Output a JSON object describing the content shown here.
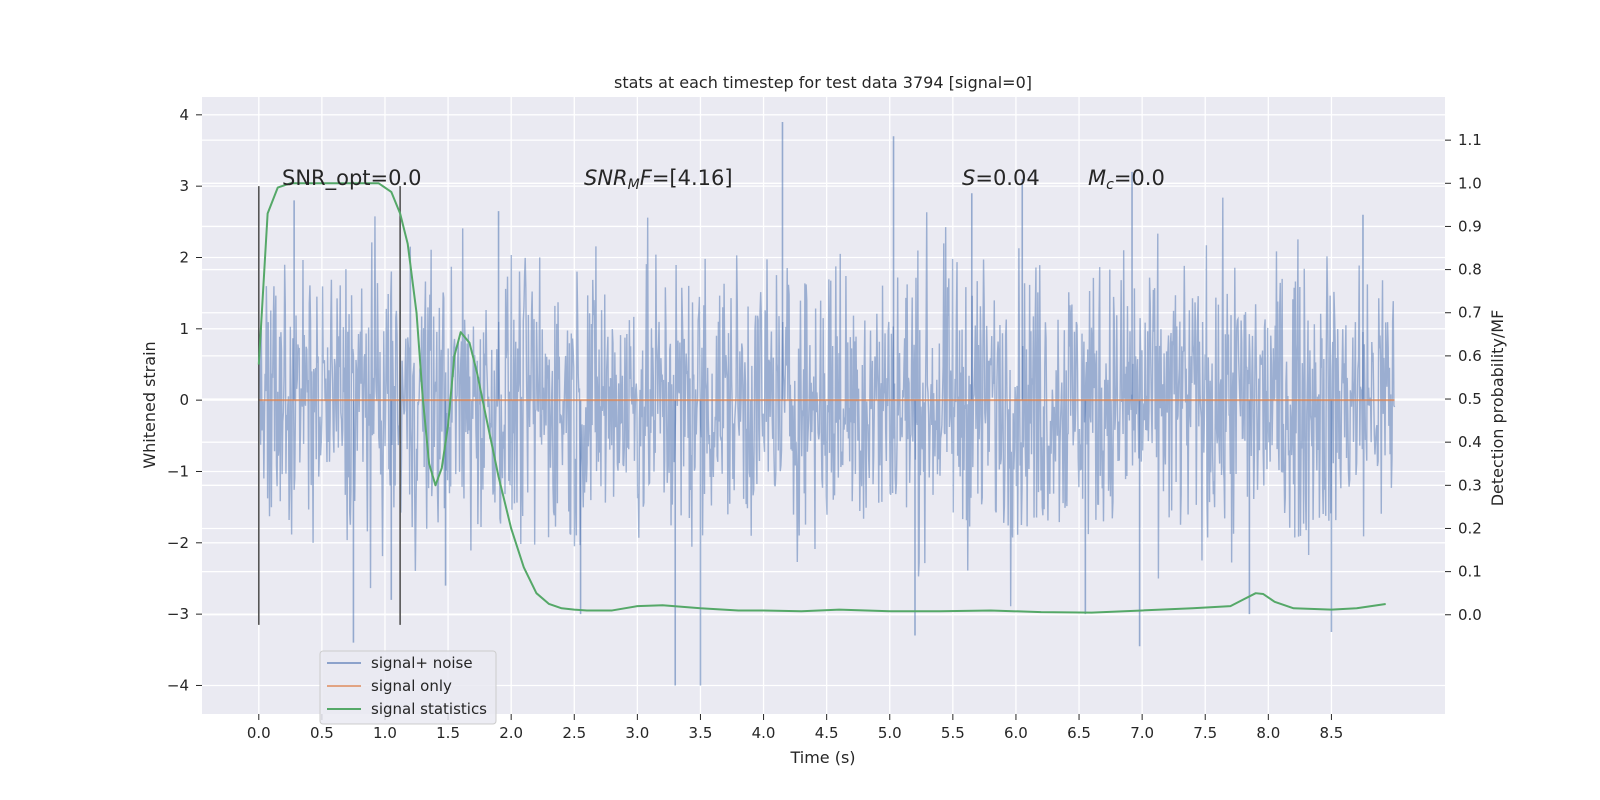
{
  "chart_data": {
    "type": "line",
    "title": "stats at each timestep for test data 3794 [signal=0]",
    "xlabel": "Time (s)",
    "ylabel": "Whitened strain",
    "ylabel_right": "Detection probability/MF",
    "xlim": [
      -0.45,
      9.4
    ],
    "ylim": [
      -4.4,
      4.25
    ],
    "ylim_right": [
      -0.23,
      1.2
    ],
    "x_ticks": [
      0.0,
      0.5,
      1.0,
      1.5,
      2.0,
      2.5,
      3.0,
      3.5,
      4.0,
      4.5,
      5.0,
      5.5,
      6.0,
      6.5,
      7.0,
      7.5,
      8.0,
      8.5
    ],
    "x_tick_labels": [
      "0.0",
      "0.5",
      "1.0",
      "1.5",
      "2.0",
      "2.5",
      "3.0",
      "3.5",
      "4.0",
      "4.5",
      "5.0",
      "5.5",
      "6.0",
      "6.5",
      "7.0",
      "7.5",
      "8.0",
      "8.5"
    ],
    "y_ticks": [
      -4,
      -3,
      -2,
      -1,
      0,
      1,
      2,
      3,
      4
    ],
    "y_tick_labels": [
      "−4",
      "−3",
      "−2",
      "−1",
      "0",
      "1",
      "2",
      "3",
      "4"
    ],
    "y_right_ticks": [
      0.0,
      0.1,
      0.2,
      0.3,
      0.4,
      0.5,
      0.6,
      0.7,
      0.8,
      0.9,
      1.0,
      1.1
    ],
    "y_right_tick_labels": [
      "0.0",
      "0.1",
      "0.2",
      "0.3",
      "0.4",
      "0.5",
      "0.6",
      "0.7",
      "0.8",
      "0.9",
      "1.0",
      "1.1"
    ],
    "grid": true,
    "legend_position": "lower-left",
    "noise": {
      "name": "signal+ noise",
      "color": "#4c72b0",
      "t_start": 0.0,
      "t_end": 9.0,
      "spread": 0.95,
      "extremes": [
        {
          "t": 0.28,
          "v": 2.8
        },
        {
          "t": 0.75,
          "v": -3.4
        },
        {
          "t": 1.05,
          "v": -2.8
        },
        {
          "t": 1.48,
          "v": -2.6
        },
        {
          "t": 1.9,
          "v": 2.65
        },
        {
          "t": 2.55,
          "v": -3.0
        },
        {
          "t": 3.3,
          "v": -4.0
        },
        {
          "t": 3.5,
          "v": -4.0
        },
        {
          "t": 4.15,
          "v": 3.9
        },
        {
          "t": 5.03,
          "v": 3.7
        },
        {
          "t": 5.2,
          "v": -3.3
        },
        {
          "t": 5.65,
          "v": 2.9
        },
        {
          "t": 6.05,
          "v": 3.1
        },
        {
          "t": 6.55,
          "v": -3.0
        },
        {
          "t": 6.92,
          "v": 3.2
        },
        {
          "t": 6.98,
          "v": -3.45
        },
        {
          "t": 7.85,
          "v": -3.0
        },
        {
          "t": 8.5,
          "v": -3.25
        },
        {
          "t": 8.75,
          "v": 2.6
        }
      ]
    },
    "signal_only": {
      "name": "signal only",
      "color": "#dd8452",
      "value": 0.0
    },
    "statistics": {
      "name": "signal statistics",
      "color": "#55a868",
      "x": [
        0.0,
        0.07,
        0.15,
        0.25,
        0.4,
        0.6,
        0.8,
        0.95,
        1.05,
        1.12,
        1.18,
        1.25,
        1.3,
        1.35,
        1.4,
        1.45,
        1.5,
        1.55,
        1.6,
        1.67,
        1.73,
        1.8,
        1.9,
        2.0,
        2.1,
        2.2,
        2.3,
        2.4,
        2.5,
        2.6,
        2.8,
        3.0,
        3.2,
        3.5,
        3.8,
        4.0,
        4.3,
        4.6,
        5.0,
        5.4,
        5.8,
        6.2,
        6.6,
        7.0,
        7.4,
        7.7,
        7.8,
        7.9,
        7.96,
        8.05,
        8.2,
        8.5,
        8.7,
        8.93
      ],
      "y": [
        0.58,
        0.93,
        0.99,
        1.0,
        1.0,
        1.0,
        1.0,
        1.0,
        0.98,
        0.93,
        0.86,
        0.7,
        0.5,
        0.35,
        0.3,
        0.34,
        0.44,
        0.6,
        0.655,
        0.63,
        0.56,
        0.46,
        0.32,
        0.2,
        0.11,
        0.05,
        0.025,
        0.015,
        0.012,
        0.01,
        0.01,
        0.02,
        0.022,
        0.015,
        0.01,
        0.01,
        0.008,
        0.012,
        0.008,
        0.008,
        0.01,
        0.006,
        0.005,
        0.01,
        0.015,
        0.02,
        0.035,
        0.05,
        0.048,
        0.03,
        0.015,
        0.012,
        0.015,
        0.025
      ]
    },
    "markers": [
      {
        "t": 0.0,
        "y0": -3.15,
        "y1": 3.0
      },
      {
        "t": 1.12,
        "y0": -3.15,
        "y1": 3.0
      }
    ],
    "annotations": [
      {
        "id": "snr-opt",
        "text": "SNR_opt=0.0"
      },
      {
        "id": "snr-mf",
        "text": "=[4.16]"
      },
      {
        "id": "s",
        "text": "=0.04"
      },
      {
        "id": "mc",
        "text": "=0.0"
      }
    ],
    "legend": [
      {
        "label": "signal+ noise",
        "color": "#4c72b0"
      },
      {
        "label": "signal only",
        "color": "#dd8452"
      },
      {
        "label": "signal statistics",
        "color": "#55a868"
      }
    ]
  }
}
